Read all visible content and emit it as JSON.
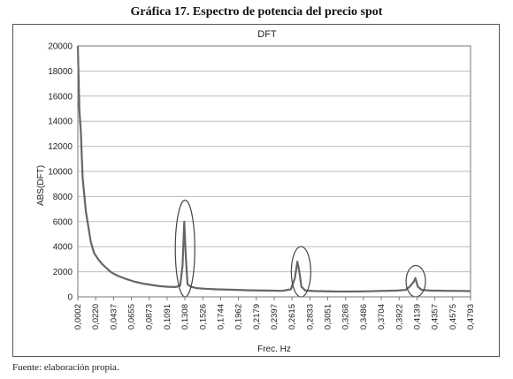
{
  "figure": {
    "title": "Gráfica 17. Espectro de potencia del precio spot",
    "source": "Fuente: elaboración propia."
  },
  "chart_data": {
    "type": "line",
    "title": "DFT",
    "xlabel": "Frec. Hz",
    "ylabel": "ABS(DFT)",
    "xlim": [
      0.0002,
      0.4793
    ],
    "ylim": [
      0,
      20000
    ],
    "yticks": [
      0,
      2000,
      4000,
      6000,
      8000,
      10000,
      12000,
      14000,
      16000,
      18000,
      20000
    ],
    "xtick_labels": [
      "0,0002",
      "0,0220",
      "0,0437",
      "0,0655",
      "0,0873",
      "0,1091",
      "0,1308",
      "0,1526",
      "0,1744",
      "0,1962",
      "0,2179",
      "0,2397",
      "0,2615",
      "0,2833",
      "0,3051",
      "0,3268",
      "0,3486",
      "0,3704",
      "0,3922",
      "0,4139",
      "0,4357",
      "0,4575",
      "0,4793"
    ],
    "grid": "horizontal",
    "series": [
      {
        "color": "#555555",
        "x": [
          0.0002,
          0.002,
          0.004,
          0.006,
          0.008,
          0.01,
          0.013,
          0.016,
          0.02,
          0.025,
          0.03,
          0.035,
          0.04,
          0.045,
          0.05,
          0.06,
          0.07,
          0.08,
          0.09,
          0.1,
          0.11,
          0.12,
          0.125,
          0.128,
          0.13,
          0.132,
          0.134,
          0.138,
          0.145,
          0.155,
          0.17,
          0.19,
          0.21,
          0.23,
          0.25,
          0.26,
          0.265,
          0.268,
          0.27,
          0.273,
          0.278,
          0.29,
          0.31,
          0.33,
          0.35,
          0.37,
          0.39,
          0.4,
          0.405,
          0.41,
          0.412,
          0.415,
          0.42,
          0.43,
          0.45,
          0.47,
          0.4793
        ],
        "values": [
          20000,
          15000,
          13000,
          9500,
          8200,
          6800,
          5600,
          4400,
          3500,
          3000,
          2600,
          2300,
          2000,
          1800,
          1650,
          1400,
          1200,
          1050,
          950,
          850,
          800,
          780,
          900,
          2500,
          6000,
          3200,
          1000,
          800,
          700,
          650,
          600,
          560,
          520,
          500,
          480,
          600,
          1500,
          2800,
          2200,
          800,
          500,
          460,
          430,
          420,
          440,
          470,
          500,
          550,
          800,
          1200,
          1500,
          800,
          550,
          500,
          480,
          470,
          450
        ]
      }
    ],
    "annotations": [
      {
        "type": "ellipse",
        "x": 0.131,
        "ylim": [
          0,
          7700
        ]
      },
      {
        "type": "ellipse",
        "x": 0.2725,
        "ylim": [
          0,
          4000
        ]
      },
      {
        "type": "ellipse",
        "x": 0.4125,
        "ylim": [
          0,
          2500
        ]
      }
    ]
  }
}
